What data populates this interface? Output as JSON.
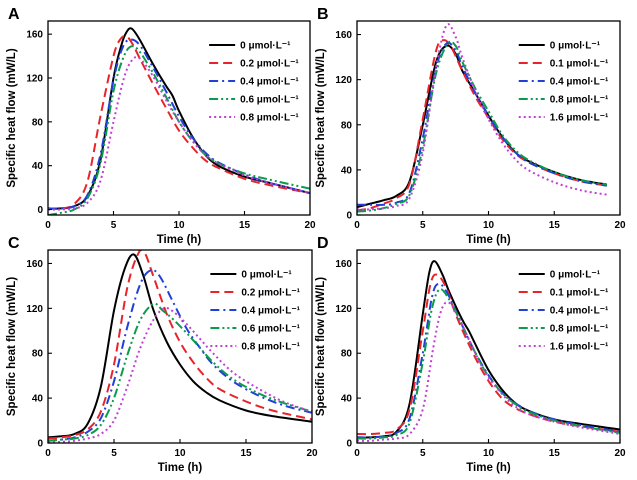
{
  "chart_data": [
    {
      "panel": "A",
      "type": "line",
      "xlabel": "Time (h)",
      "ylabel": "Specific heat flow (mW/L)",
      "xlim": [
        0,
        20
      ],
      "ylim": [
        -5,
        172
      ],
      "xticks": [
        0,
        5,
        10,
        15,
        20
      ],
      "yticks": [
        0,
        40,
        80,
        120,
        160
      ],
      "legend_position": "top-right",
      "series": [
        {
          "name": "0 μmol·L⁻¹",
          "color": "#000000",
          "dash": "solid",
          "x": [
            0,
            1,
            2,
            3,
            4,
            5,
            5.6,
            6,
            6.4,
            7,
            8,
            9,
            9.5,
            10,
            11,
            12,
            13,
            15,
            17,
            20
          ],
          "y": [
            1,
            1,
            3,
            12,
            45,
            120,
            150,
            162,
            165,
            155,
            133,
            113,
            104,
            90,
            67,
            50,
            40,
            30,
            24,
            15
          ]
        },
        {
          "name": "0.2 μmol·L⁻¹",
          "color": "#e8242b",
          "dash": "dash",
          "x": [
            0,
            1,
            2,
            3,
            4,
            5,
            5.5,
            6,
            6.5,
            7,
            8,
            9,
            10,
            11,
            12,
            13,
            15,
            17,
            20
          ],
          "y": [
            1,
            1,
            5,
            25,
            85,
            140,
            155,
            158,
            150,
            138,
            115,
            93,
            72,
            57,
            45,
            38,
            28,
            22,
            15
          ]
        },
        {
          "name": "0.4 μmol·L⁻¹",
          "color": "#2140d8",
          "dash": "dashdot",
          "x": [
            0,
            1,
            2,
            3,
            4,
            5,
            5.7,
            6.3,
            7,
            8,
            9,
            10,
            11,
            12,
            13,
            15,
            17,
            20
          ],
          "y": [
            1,
            1,
            3,
            13,
            50,
            118,
            148,
            155,
            150,
            130,
            108,
            85,
            66,
            52,
            43,
            32,
            24,
            15
          ]
        },
        {
          "name": "0.6 μmol·L⁻¹",
          "color": "#0a9c4c",
          "dash": "dashdotdot",
          "x": [
            0,
            1,
            2,
            3,
            4,
            5,
            5.8,
            6.4,
            7,
            8,
            9,
            10,
            11,
            12,
            13,
            15,
            17,
            20
          ],
          "y": [
            -5,
            -3,
            0,
            10,
            42,
            108,
            140,
            149,
            144,
            125,
            103,
            80,
            63,
            50,
            42,
            33,
            27,
            19
          ]
        },
        {
          "name": "0.8 μmol·L⁻¹",
          "color": "#c23fd6",
          "dash": "dot",
          "x": [
            0,
            1,
            2,
            3,
            4,
            5,
            5.8,
            6.4,
            7,
            8,
            9,
            10,
            11,
            12,
            13,
            15,
            17,
            20
          ],
          "y": [
            0,
            0,
            1,
            6,
            26,
            80,
            120,
            136,
            138,
            122,
            100,
            80,
            63,
            50,
            42,
            31,
            24,
            15
          ]
        }
      ]
    },
    {
      "panel": "B",
      "type": "line",
      "xlabel": "Time (h)",
      "ylabel": "Specific heat flow (mW/L)",
      "xlim": [
        0,
        20
      ],
      "ylim": [
        0,
        172
      ],
      "xticks": [
        0,
        5,
        10,
        15,
        20
      ],
      "yticks": [
        0,
        40,
        80,
        120,
        160
      ],
      "legend_position": "top-right",
      "series": [
        {
          "name": "0 μmol·L⁻¹",
          "color": "#000000",
          "dash": "solid",
          "x": [
            0,
            1,
            2,
            3,
            4,
            5,
            6,
            6.8,
            7.5,
            8,
            9,
            10,
            11,
            12,
            13,
            15,
            17,
            19
          ],
          "y": [
            7,
            10,
            13,
            17,
            30,
            80,
            135,
            150,
            143,
            128,
            108,
            88,
            70,
            56,
            48,
            38,
            31,
            27
          ]
        },
        {
          "name": "0.1 μmol·L⁻¹",
          "color": "#e8242b",
          "dash": "dash",
          "x": [
            0,
            1,
            2,
            3,
            4,
            5,
            6,
            6.6,
            7.2,
            8,
            9,
            10,
            11,
            12,
            13,
            15,
            17,
            19
          ],
          "y": [
            4,
            6,
            10,
            15,
            28,
            85,
            145,
            155,
            148,
            128,
            105,
            86,
            68,
            55,
            47,
            37,
            30,
            26
          ]
        },
        {
          "name": "0.4 μmol·L⁻¹",
          "color": "#2140d8",
          "dash": "dashdot",
          "x": [
            0,
            1,
            2,
            3,
            4,
            5,
            6,
            6.8,
            7.5,
            8,
            9,
            10,
            11,
            12,
            13,
            15,
            17,
            19
          ],
          "y": [
            9,
            9,
            9,
            11,
            20,
            68,
            130,
            152,
            146,
            132,
            108,
            88,
            70,
            56,
            47,
            37,
            30,
            26
          ]
        },
        {
          "name": "0.8 μmol·L⁻¹",
          "color": "#0a9c4c",
          "dash": "dashdotdot",
          "x": [
            0,
            1,
            2,
            3,
            4,
            5,
            6,
            6.9,
            7.5,
            8,
            9,
            10,
            11,
            12,
            13,
            15,
            17,
            19
          ],
          "y": [
            3,
            4,
            6,
            10,
            18,
            60,
            125,
            152,
            150,
            136,
            112,
            92,
            72,
            58,
            49,
            38,
            31,
            27
          ]
        },
        {
          "name": "1.6 μmol·L⁻¹",
          "color": "#c23fd6",
          "dash": "dot",
          "x": [
            0,
            1,
            2,
            3,
            4,
            5,
            6,
            6.8,
            7.5,
            8,
            9,
            10,
            11,
            12,
            13,
            15,
            17,
            19
          ],
          "y": [
            5,
            5,
            6,
            8,
            15,
            55,
            130,
            168,
            158,
            140,
            110,
            85,
            65,
            50,
            40,
            29,
            22,
            18
          ]
        }
      ]
    },
    {
      "panel": "C",
      "type": "line",
      "xlabel": "Time (h)",
      "ylabel": "Specific heat flow (mW/L)",
      "xlim": [
        0,
        20
      ],
      "ylim": [
        0,
        172
      ],
      "xticks": [
        0,
        5,
        10,
        15,
        20
      ],
      "yticks": [
        0,
        40,
        80,
        120,
        160
      ],
      "legend_position": "top-right",
      "series": [
        {
          "name": "0 μmol·L⁻¹",
          "color": "#000000",
          "dash": "solid",
          "x": [
            0,
            1,
            2,
            3,
            4,
            5,
            5.8,
            6.5,
            7.2,
            8,
            9,
            10,
            11,
            12,
            13,
            15,
            17,
            20
          ],
          "y": [
            5,
            6,
            8,
            17,
            50,
            118,
            155,
            168,
            150,
            118,
            90,
            70,
            55,
            45,
            38,
            29,
            24,
            19
          ]
        },
        {
          "name": "0.2 μmol·L⁻¹",
          "color": "#e8242b",
          "dash": "dash",
          "x": [
            0,
            1,
            2,
            3,
            4,
            5,
            6,
            6.8,
            7.3,
            8,
            9,
            10,
            11,
            12,
            13,
            15,
            17,
            20
          ],
          "y": [
            4,
            5,
            7,
            12,
            28,
            70,
            138,
            168,
            170,
            148,
            115,
            90,
            72,
            58,
            48,
            37,
            29,
            21
          ]
        },
        {
          "name": "0.4 μmol·L⁻¹",
          "color": "#2140d8",
          "dash": "dashdot",
          "x": [
            0,
            1,
            2,
            3,
            4,
            5,
            6,
            7,
            7.8,
            8.5,
            9.5,
            10.5,
            11.5,
            12.5,
            14,
            16,
            18,
            20
          ],
          "y": [
            2,
            3,
            5,
            10,
            22,
            55,
            103,
            142,
            154,
            148,
            125,
            102,
            85,
            70,
            55,
            42,
            33,
            27
          ]
        },
        {
          "name": "0.6 μmol·L⁻¹",
          "color": "#0a9c4c",
          "dash": "dashdotdot",
          "x": [
            0,
            1,
            2,
            3,
            4,
            5,
            6,
            7,
            8,
            8.7,
            9.5,
            10.5,
            11.5,
            12.5,
            14,
            16,
            18,
            20
          ],
          "y": [
            2,
            3,
            4,
            7,
            16,
            40,
            78,
            110,
            124,
            118,
            110,
            98,
            85,
            72,
            57,
            44,
            35,
            28
          ]
        },
        {
          "name": "0.8 μmol·L⁻¹",
          "color": "#c23fd6",
          "dash": "dot",
          "x": [
            0,
            1,
            2,
            3,
            4,
            5,
            6,
            7,
            8,
            8.8,
            9.5,
            10.5,
            11.5,
            12.5,
            14,
            16,
            18,
            20
          ],
          "y": [
            1,
            1,
            2,
            4,
            8,
            20,
            50,
            85,
            110,
            120,
            117,
            106,
            93,
            80,
            63,
            48,
            36,
            28
          ]
        }
      ]
    },
    {
      "panel": "D",
      "type": "line",
      "xlabel": "Time (h)",
      "ylabel": "Specific heat flow (mW/L)",
      "xlim": [
        0,
        20
      ],
      "ylim": [
        0,
        172
      ],
      "xticks": [
        0,
        5,
        10,
        15,
        20
      ],
      "yticks": [
        0,
        40,
        80,
        120,
        160
      ],
      "legend_position": "top-right",
      "series": [
        {
          "name": "0 μmol·L⁻¹",
          "color": "#000000",
          "dash": "solid",
          "x": [
            0,
            1,
            2,
            3,
            4,
            5,
            5.5,
            5.9,
            6.5,
            7,
            8,
            8.5,
            9,
            10,
            11,
            12,
            13,
            15,
            17,
            20
          ],
          "y": [
            5,
            5,
            6,
            10,
            35,
            115,
            152,
            162,
            150,
            135,
            110,
            100,
            88,
            65,
            48,
            36,
            29,
            21,
            17,
            12
          ]
        },
        {
          "name": "0.1 μmol·L⁻¹",
          "color": "#e8242b",
          "dash": "dash",
          "x": [
            0,
            1,
            2,
            3,
            4,
            5,
            5.6,
            6.1,
            6.8,
            7.5,
            8.5,
            9.5,
            10.5,
            11.5,
            13,
            15,
            17,
            20
          ],
          "y": [
            8,
            8,
            9,
            12,
            30,
            100,
            142,
            150,
            138,
            115,
            88,
            65,
            47,
            35,
            26,
            19,
            15,
            10
          ]
        },
        {
          "name": "0.4 μmol·L⁻¹",
          "color": "#2140d8",
          "dash": "dashdot",
          "x": [
            0,
            1,
            2,
            3,
            4,
            5,
            5.7,
            6.2,
            6.8,
            7.5,
            8.5,
            9.5,
            10.5,
            11.5,
            13,
            15,
            17,
            20
          ],
          "y": [
            5,
            5,
            6,
            9,
            22,
            80,
            130,
            142,
            135,
            118,
            92,
            70,
            52,
            40,
            29,
            21,
            16,
            10
          ]
        },
        {
          "name": "0.8 μmol·L⁻¹",
          "color": "#0a9c4c",
          "dash": "dashdotdot",
          "x": [
            0,
            1,
            2,
            3,
            4,
            5,
            5.7,
            6.3,
            7,
            7.8,
            8.8,
            9.8,
            11,
            12,
            13,
            15,
            17,
            20
          ],
          "y": [
            4,
            4,
            5,
            7,
            18,
            72,
            120,
            137,
            128,
            110,
            85,
            63,
            45,
            35,
            28,
            20,
            15,
            9
          ]
        },
        {
          "name": "1.6 μmol·L⁻¹",
          "color": "#c23fd6",
          "dash": "dot",
          "x": [
            0,
            1,
            2,
            3,
            4,
            5,
            5.8,
            6.4,
            7,
            7.8,
            8.8,
            9.8,
            11,
            12,
            13,
            15,
            17,
            20
          ],
          "y": [
            2,
            2,
            3,
            4,
            8,
            30,
            85,
            118,
            125,
            110,
            85,
            62,
            44,
            33,
            26,
            19,
            14,
            8
          ]
        }
      ]
    }
  ]
}
